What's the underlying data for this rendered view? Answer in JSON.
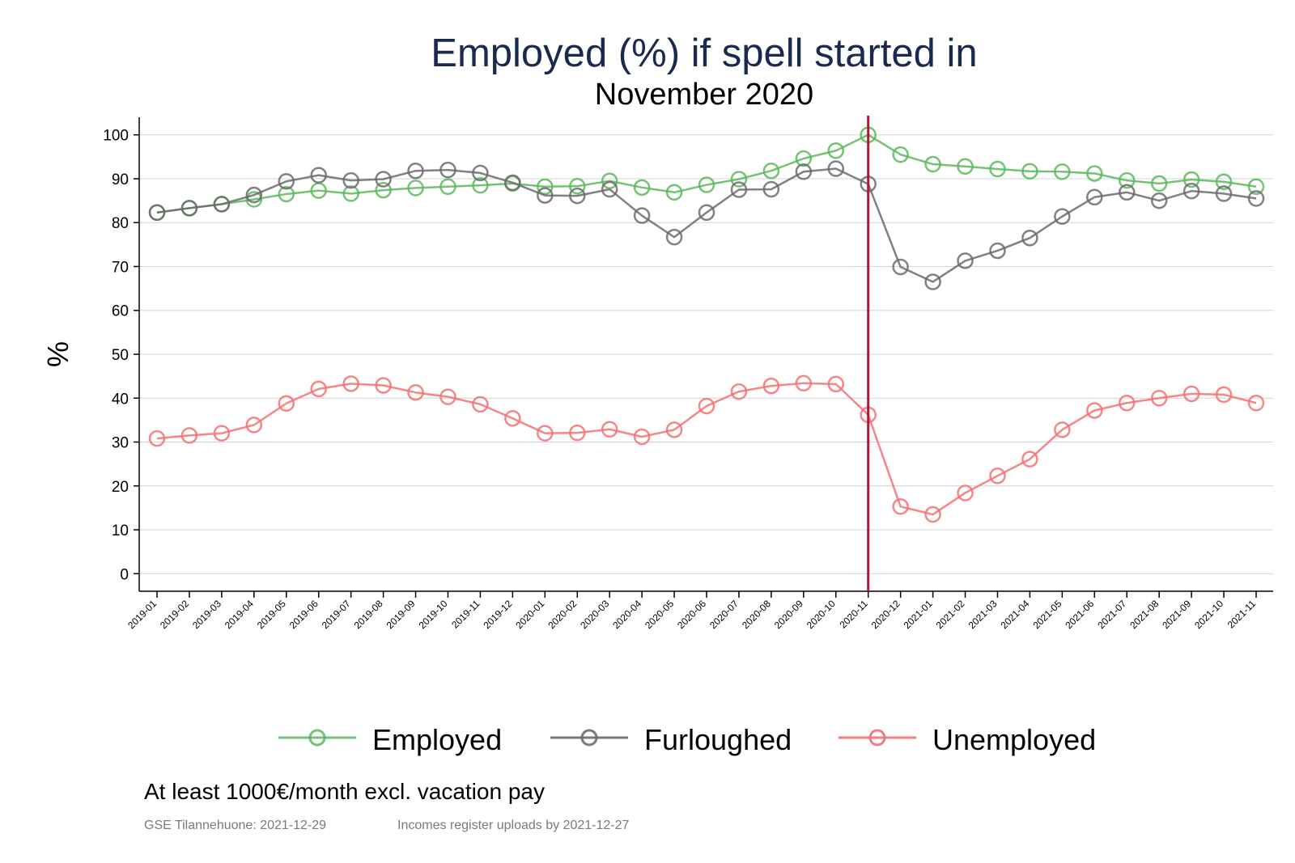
{
  "chart_data": {
    "type": "line",
    "title": "Employed (%) if spell started in",
    "subtitle": "November 2020",
    "xlabel": "",
    "ylabel": "%",
    "ylim": [
      -4,
      104
    ],
    "yticks": [
      0,
      10,
      20,
      30,
      40,
      50,
      60,
      70,
      80,
      90,
      100
    ],
    "grid": true,
    "legend_position": "bottom",
    "reference_line": {
      "x": "2020-11",
      "color": "#b0163a"
    },
    "categories": [
      "2019-01",
      "2019-02",
      "2019-03",
      "2019-04",
      "2019-05",
      "2019-06",
      "2019-07",
      "2019-08",
      "2019-09",
      "2019-10",
      "2019-11",
      "2019-12",
      "2020-01",
      "2020-02",
      "2020-03",
      "2020-04",
      "2020-05",
      "2020-06",
      "2020-07",
      "2020-08",
      "2020-09",
      "2020-10",
      "2020-11",
      "2020-12",
      "2021-01",
      "2021-02",
      "2021-03",
      "2021-04",
      "2021-05",
      "2021-06",
      "2021-07",
      "2021-08",
      "2021-09",
      "2021-10",
      "2021-11"
    ],
    "series": [
      {
        "name": "Employed",
        "color": "#5cb85c",
        "values": [
          82.3,
          83.3,
          84.2,
          85.3,
          86.5,
          87.3,
          86.6,
          87.4,
          87.9,
          88.2,
          88.5,
          88.9,
          88.2,
          88.3,
          89.5,
          88.0,
          86.9,
          88.6,
          89.9,
          91.8,
          94.6,
          96.4,
          100.0,
          95.5,
          93.3,
          92.8,
          92.2,
          91.7,
          91.6,
          91.2,
          89.6,
          88.9,
          89.8,
          89.3,
          88.2
        ]
      },
      {
        "name": "Furloughed",
        "color": "#6b6b6b",
        "values": [
          82.3,
          83.3,
          84.2,
          86.3,
          89.4,
          90.8,
          89.6,
          89.9,
          91.8,
          92.0,
          91.3,
          89.1,
          86.2,
          86.1,
          87.6,
          81.6,
          76.7,
          82.3,
          87.5,
          87.6,
          91.6,
          92.3,
          88.8,
          69.9,
          66.5,
          71.3,
          73.6,
          76.5,
          81.4,
          85.8,
          86.9,
          85.0,
          87.2,
          86.6,
          85.5
        ]
      },
      {
        "name": "Unemployed",
        "color": "#f47171",
        "values": [
          30.8,
          31.5,
          32.0,
          33.9,
          38.8,
          42.1,
          43.3,
          42.9,
          41.3,
          40.3,
          38.6,
          35.4,
          32.0,
          32.1,
          32.9,
          31.2,
          32.8,
          38.2,
          41.5,
          42.8,
          43.4,
          43.2,
          36.2,
          15.3,
          13.5,
          18.4,
          22.3,
          26.1,
          32.8,
          37.2,
          38.9,
          40.0,
          41.0,
          40.8,
          38.9
        ]
      }
    ]
  },
  "note": "At least 1000€/month excl. vacation pay",
  "footer": {
    "source": "GSE Tilannehuone: 2021-12-29",
    "uploads": "Incomes register uploads by 2021-12-27"
  }
}
